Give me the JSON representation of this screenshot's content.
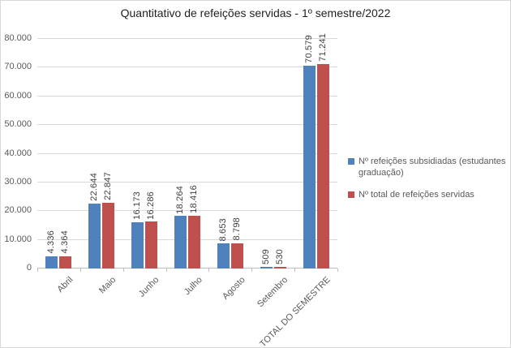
{
  "chart_data": {
    "type": "bar",
    "title": "Quantitativo de refeições servidas - 1º semestre/2022",
    "categories": [
      "Abril",
      "Maio",
      "Junho",
      "Julho",
      "Agosto",
      "Setembro",
      "TOTAL DO SEMESTRE"
    ],
    "series": [
      {
        "name": "Nº refeições subsidiadas (estudantes graduação)",
        "color": "#4F81BD",
        "values": [
          4336,
          22644,
          16173,
          18264,
          8653,
          509,
          70579
        ],
        "labels": [
          "4.336",
          "22.644",
          "16.173",
          "18.264",
          "8.653",
          "509",
          "70.579"
        ]
      },
      {
        "name": "Nº total de refeições servidas",
        "color": "#C0504D",
        "values": [
          4364,
          22847,
          16286,
          18416,
          8798,
          530,
          71241
        ],
        "labels": [
          "4.364",
          "22.847",
          "16.286",
          "18.416",
          "8.798",
          "530",
          "71.241"
        ]
      }
    ],
    "y_axis": {
      "min": 0,
      "max": 80000,
      "tick_step": 10000,
      "tick_labels": [
        "0",
        "10.000",
        "20.000",
        "30.000",
        "40.000",
        "50.000",
        "60.000",
        "70.000",
        "80.000"
      ]
    },
    "grid": true,
    "legend_position": "right",
    "style": {
      "gridline_color": "#d9d9d9",
      "axis_line_color": "#bfbfbf",
      "axis_text_color": "#595959",
      "data_label_color": "#404040",
      "title_color": "#1f1f1f",
      "background": "#ffffff",
      "frame_border_color": "#d9d9d9"
    }
  }
}
